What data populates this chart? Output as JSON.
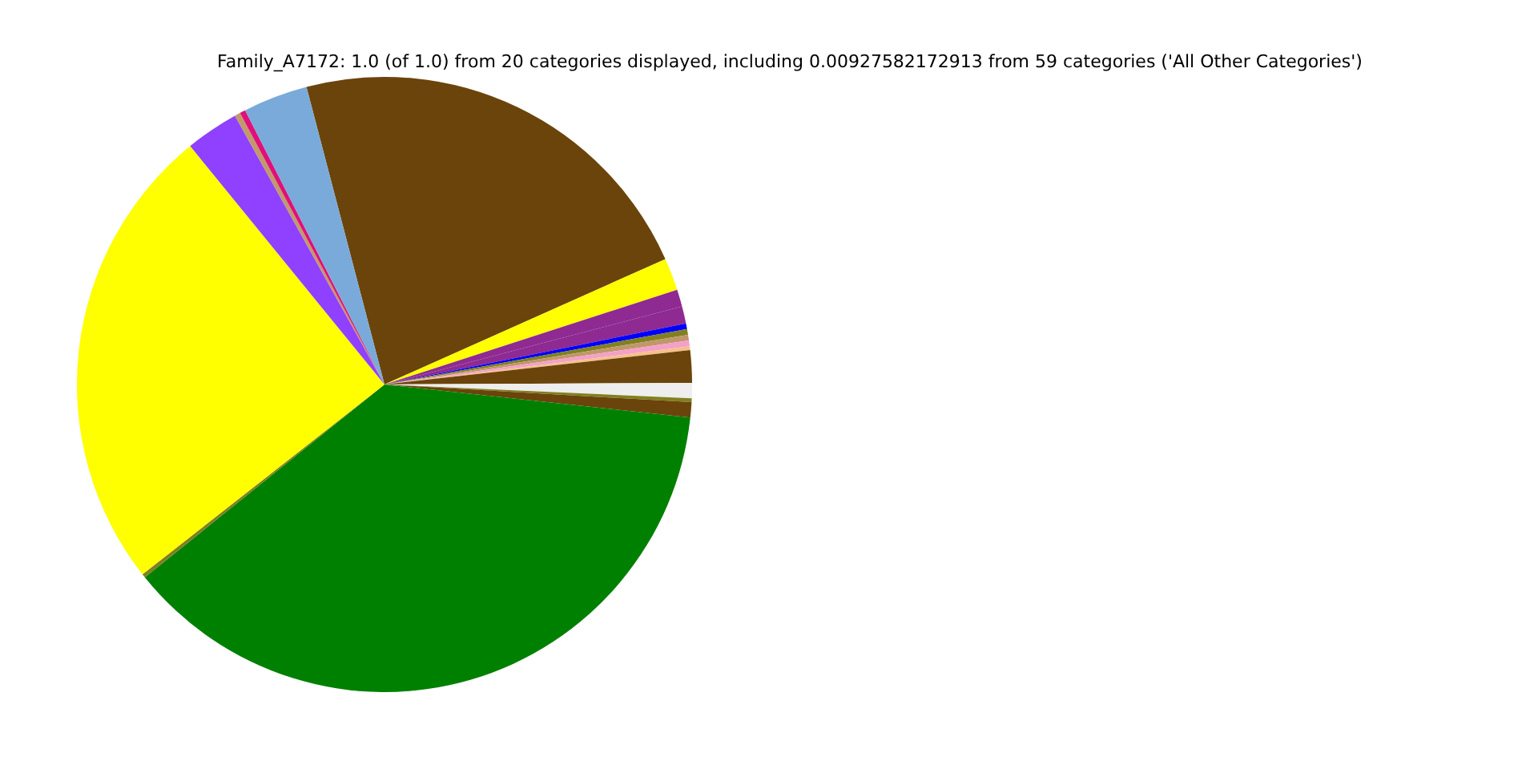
{
  "chart_data": {
    "type": "pie",
    "title": "Family_A7172: 1.0 (of 1.0) from 20 categories displayed, including 0.00927582172913 from 59 categories ('All Other Categories')",
    "categories": [
      null,
      null,
      null,
      null,
      null,
      null,
      null,
      null,
      null,
      null,
      null,
      null,
      null,
      null,
      null,
      null,
      null,
      null,
      null,
      null
    ],
    "values": [
      22.4,
      1.7,
      0.9,
      0.9,
      0.3,
      0.3,
      0.3,
      0.3,
      0.2,
      1.7,
      0.8,
      0.2,
      0.8,
      37.5,
      0.2,
      24.7,
      2.8,
      0.3,
      0.3,
      3.4
    ],
    "colors": [
      "#6b440b",
      "#ffff00",
      "#8e2a92",
      "#8e2a92",
      "#0000ff",
      "#808020",
      "#c0976a",
      "#f4a0c8",
      "#f5c08a",
      "#6b440b",
      "#eeeeee",
      "#808020",
      "#6b440b",
      "#008000",
      "#808020",
      "#ffff00",
      "#9040ff",
      "#c09a6a",
      "#e0107a",
      "#7aaad9"
    ],
    "legend": false
  }
}
